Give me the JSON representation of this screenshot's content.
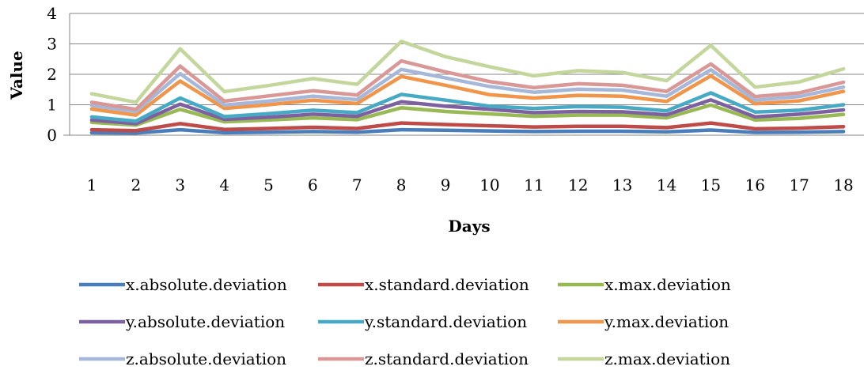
{
  "chart_data": {
    "type": "line",
    "xlabel": "Days",
    "ylabel": "Value",
    "ylim": [
      0,
      4
    ],
    "yticks": [
      0,
      1,
      2,
      3,
      4
    ],
    "grid": true,
    "legend_position": "bottom",
    "categories": [
      "1",
      "2",
      "3",
      "4",
      "5",
      "6",
      "7",
      "8",
      "9",
      "10",
      "11",
      "12",
      "13",
      "14",
      "15",
      "16",
      "17",
      "18"
    ],
    "series": [
      {
        "name": "x.absolute.deviation",
        "color": "#4a7ebb",
        "values": [
          0.08,
          0.07,
          0.18,
          0.08,
          0.1,
          0.12,
          0.1,
          0.18,
          0.16,
          0.14,
          0.12,
          0.13,
          0.13,
          0.11,
          0.17,
          0.09,
          0.1,
          0.12
        ]
      },
      {
        "name": "x.standard.deviation",
        "color": "#be4b48",
        "values": [
          0.18,
          0.15,
          0.38,
          0.19,
          0.22,
          0.26,
          0.22,
          0.4,
          0.35,
          0.31,
          0.27,
          0.29,
          0.29,
          0.25,
          0.4,
          0.21,
          0.23,
          0.28
        ]
      },
      {
        "name": "x.max.deviation",
        "color": "#98b954",
        "values": [
          0.42,
          0.33,
          0.85,
          0.44,
          0.5,
          0.57,
          0.51,
          0.9,
          0.78,
          0.7,
          0.62,
          0.66,
          0.66,
          0.57,
          0.99,
          0.5,
          0.55,
          0.68
        ]
      },
      {
        "name": "y.absolute.deviation",
        "color": "#7d60a0",
        "values": [
          0.5,
          0.38,
          1.02,
          0.52,
          0.59,
          0.69,
          0.62,
          1.1,
          0.95,
          0.85,
          0.74,
          0.78,
          0.77,
          0.67,
          1.16,
          0.6,
          0.69,
          0.83
        ]
      },
      {
        "name": "y.standard.deviation",
        "color": "#46aac5",
        "values": [
          0.6,
          0.46,
          1.22,
          0.61,
          0.71,
          0.82,
          0.74,
          1.34,
          1.15,
          0.95,
          0.88,
          0.94,
          0.92,
          0.8,
          1.39,
          0.76,
          0.82,
          1.0
        ]
      },
      {
        "name": "y.max.deviation",
        "color": "#f0954a",
        "values": [
          0.86,
          0.66,
          1.78,
          0.88,
          1.0,
          1.15,
          1.04,
          1.93,
          1.64,
          1.33,
          1.22,
          1.31,
          1.28,
          1.11,
          1.95,
          1.03,
          1.13,
          1.44
        ]
      },
      {
        "name": "z.absolute.deviation",
        "color": "#a5b8da",
        "values": [
          0.98,
          0.78,
          2.02,
          0.99,
          1.12,
          1.28,
          1.17,
          2.16,
          1.88,
          1.6,
          1.41,
          1.51,
          1.48,
          1.28,
          2.15,
          1.15,
          1.27,
          1.58
        ]
      },
      {
        "name": "z.standard.deviation",
        "color": "#d99795",
        "values": [
          1.08,
          0.85,
          2.27,
          1.12,
          1.29,
          1.46,
          1.32,
          2.44,
          2.08,
          1.76,
          1.56,
          1.69,
          1.64,
          1.44,
          2.34,
          1.27,
          1.39,
          1.74
        ]
      },
      {
        "name": "z.max.deviation",
        "color": "#c3d69b",
        "values": [
          1.36,
          1.08,
          2.84,
          1.43,
          1.63,
          1.86,
          1.67,
          3.08,
          2.58,
          2.25,
          1.95,
          2.12,
          2.06,
          1.79,
          2.95,
          1.58,
          1.75,
          2.18
        ]
      }
    ]
  }
}
